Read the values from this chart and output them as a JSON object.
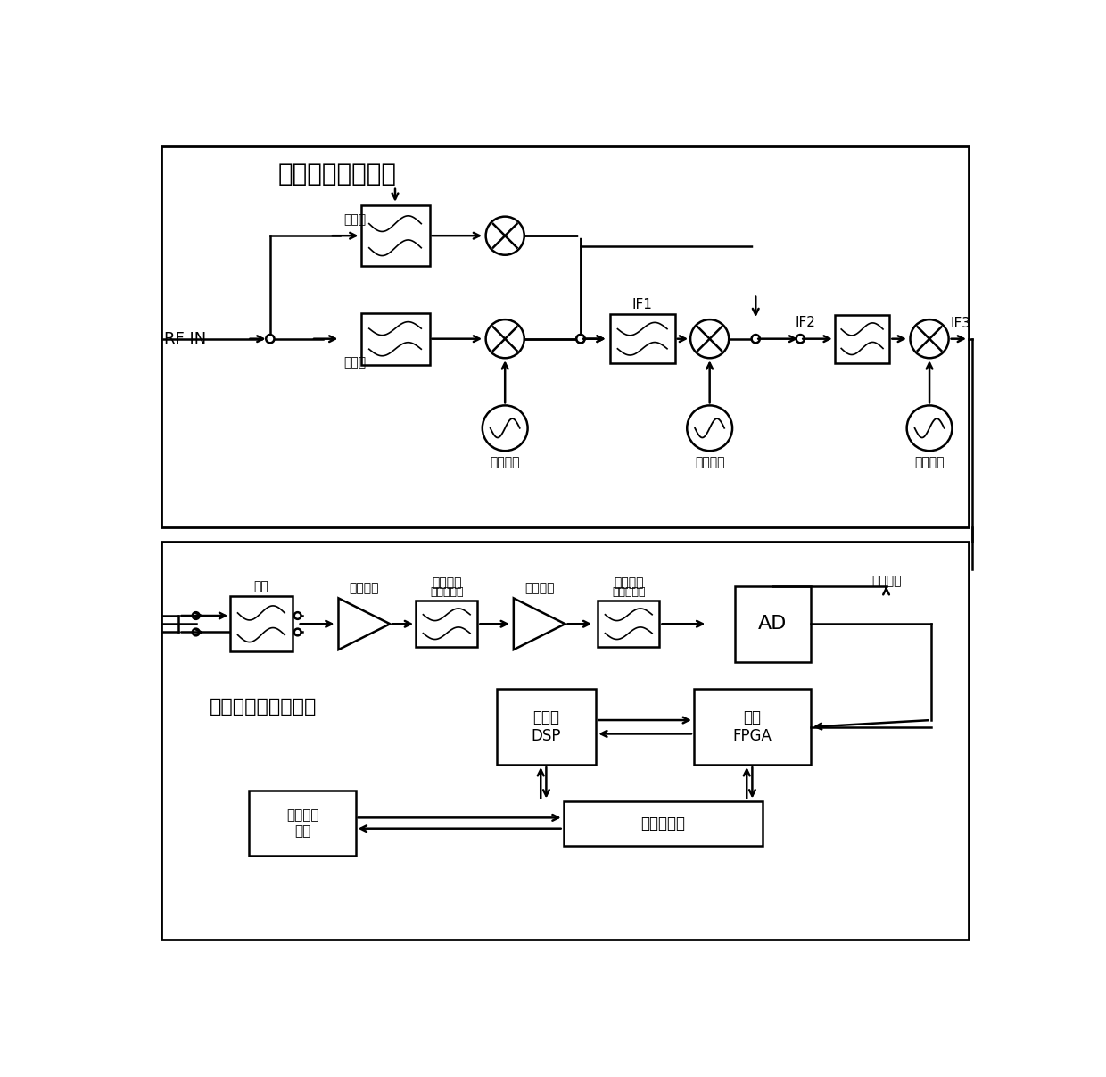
{
  "title_rf": "射频通道及下变频",
  "title_if": "中频处理及控制部分",
  "label_hi_filter": "高波段",
  "label_lo_filter": "低波段",
  "label_lo1": "第一本振",
  "label_lo2": "第二本振",
  "label_lo3": "第三本振",
  "label_IF1": "IF1",
  "label_IF2": "IF2",
  "label_IF3": "IF3",
  "label_RFIN": "RF IN",
  "label_filter_if": "滤波",
  "label_gain1": "增益控制",
  "label_aaf1": "抗混叠滤波",
  "label_gain2": "增益控制",
  "label_aaf2": "抗混叠滤波",
  "label_sample": "采样时钟",
  "label_AD": "AD",
  "label_DSP": "高性能\nDSP",
  "label_FPGA": "高速\nFPGA",
  "label_bus": "高速总线器",
  "label_interface": "人机交互\n接口"
}
